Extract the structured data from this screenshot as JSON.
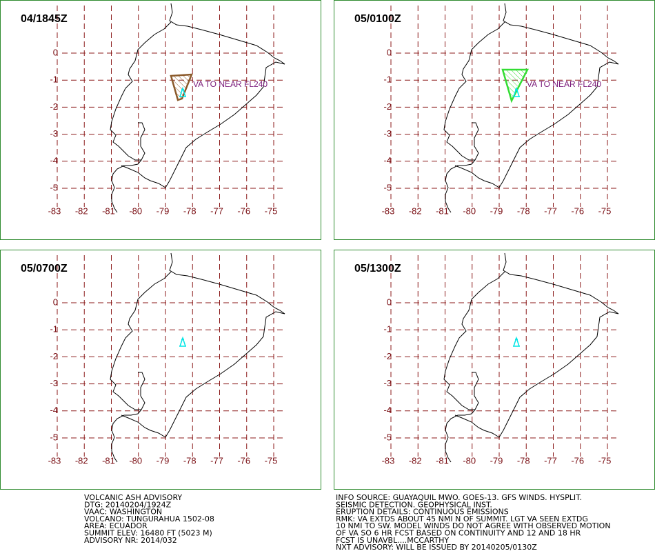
{
  "panels": [
    {
      "title": "04/1845Z",
      "annotation": "VA TO NEAR FL240",
      "ash_color": "#8b5a2b"
    },
    {
      "title": "05/0100Z",
      "annotation": "VA TO NEAR FL240",
      "ash_color": "#33dd33"
    },
    {
      "title": "05/0700Z"
    },
    {
      "title": "05/1300Z"
    }
  ],
  "map": {
    "lon_ticks": [
      -83,
      -82,
      -81,
      -80,
      -79,
      -78,
      -77,
      -76,
      -75
    ],
    "lat_ticks": [
      0,
      -1,
      -2,
      -3,
      -4,
      -5
    ]
  },
  "footer_left": [
    "VOLCANIC ASH ADVISORY",
    "DTG: 20140204/1924Z",
    "VAAC: WASHINGTON",
    "VOLCANO: TUNGURAHUA 1502-08",
    "AREA: ECUADOR",
    "SUMMIT ELEV: 16480 FT (5023 M)",
    "ADVISORY NR: 2014/032"
  ],
  "footer_right": [
    "INFO SOURCE: GUAYAQUIL MWO. GOES-13. GFS WINDS. HYSPLIT.",
    "SEISMIC DETECTION. GEOPHYSICAL INST.",
    "ERUPTION DETAILS: CONTINUOUS EMISSIONS",
    "RMK: VA EXTDS ABOUT 45 NMI N OF SUMMIT. LGT VA SEEN EXTDG",
    "10 NMI TO SW. MODEL WINDS DO NOT AGREE WITH OBSERVED MOTION",
    "OF VA SO 6 HR FCST BASED ON CONTINUITY AND 12 AND 18 HR",
    "FCST IS UNAVBL....MCCARTHY",
    "NXT ADVISORY: WILL BE ISSUED BY 20140205/0130Z"
  ]
}
